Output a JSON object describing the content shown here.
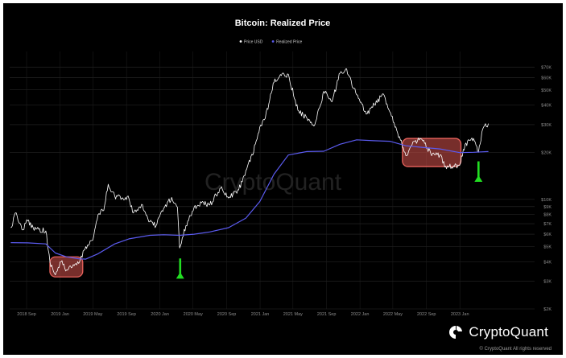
{
  "chart_data": {
    "type": "line",
    "title": "Bitcoin: Realized Price",
    "yscale": "log",
    "ylim": [
      2000,
      80000
    ],
    "grid": true,
    "legend_position": "top-center",
    "y_ticks": [
      {
        "value": 2000,
        "label": "$2K"
      },
      {
        "value": 3000,
        "label": "$3K"
      },
      {
        "value": 4000,
        "label": "$4K"
      },
      {
        "value": 5000,
        "label": "$5K"
      },
      {
        "value": 6000,
        "label": "$6K"
      },
      {
        "value": 7000,
        "label": "$7K"
      },
      {
        "value": 8000,
        "label": "$8K"
      },
      {
        "value": 9000,
        "label": "$9K"
      },
      {
        "value": 10000,
        "label": "$10K"
      },
      {
        "value": 20000,
        "label": "$20K"
      },
      {
        "value": 30000,
        "label": "$30K"
      },
      {
        "value": 40000,
        "label": "$40K"
      },
      {
        "value": 50000,
        "label": "$50K"
      },
      {
        "value": 60000,
        "label": "$60K"
      },
      {
        "value": 70000,
        "label": "$70K"
      }
    ],
    "x_range": [
      "2018-07",
      "2023-10"
    ],
    "x_ticks": [
      {
        "date": "2018-09",
        "label": "2018 Sep"
      },
      {
        "date": "2019-01",
        "label": "2019 Jan"
      },
      {
        "date": "2019-05",
        "label": "2019 May"
      },
      {
        "date": "2019-09",
        "label": "2019 Sep"
      },
      {
        "date": "2020-01",
        "label": "2020 Jan"
      },
      {
        "date": "2020-05",
        "label": "2020 May"
      },
      {
        "date": "2020-09",
        "label": "2020 Sep"
      },
      {
        "date": "2021-01",
        "label": "2021 Jan"
      },
      {
        "date": "2021-05",
        "label": "2021 May"
      },
      {
        "date": "2021-09",
        "label": "2021 Sep"
      },
      {
        "date": "2022-01",
        "label": "2022 Jan"
      },
      {
        "date": "2022-05",
        "label": "2022 May"
      },
      {
        "date": "2022-09",
        "label": "2022 Sep"
      },
      {
        "date": "2023-01",
        "label": "2023 Jan"
      }
    ],
    "series": [
      {
        "name": "Price USD",
        "color": "#ffffff",
        "points": [
          [
            "2018-07-05",
            6600
          ],
          [
            "2018-07-25",
            8200
          ],
          [
            "2018-08-15",
            6400
          ],
          [
            "2018-09-05",
            7300
          ],
          [
            "2018-09-25",
            6600
          ],
          [
            "2018-10-15",
            6450
          ],
          [
            "2018-11-10",
            6300
          ],
          [
            "2018-11-25",
            4000
          ],
          [
            "2018-12-15",
            3300
          ],
          [
            "2019-01-05",
            4000
          ],
          [
            "2019-01-25",
            3550
          ],
          [
            "2019-02-15",
            3700
          ],
          [
            "2019-03-10",
            3900
          ],
          [
            "2019-04-05",
            5000
          ],
          [
            "2019-05-01",
            5500
          ],
          [
            "2019-05-20",
            8000
          ],
          [
            "2019-06-10",
            8500
          ],
          [
            "2019-06-26",
            12500
          ],
          [
            "2019-07-20",
            10500
          ],
          [
            "2019-08-15",
            10200
          ],
          [
            "2019-09-10",
            10100
          ],
          [
            "2019-09-26",
            8200
          ],
          [
            "2019-10-26",
            9300
          ],
          [
            "2019-11-25",
            7200
          ],
          [
            "2019-12-18",
            6800
          ],
          [
            "2020-01-15",
            8800
          ],
          [
            "2020-02-13",
            10300
          ],
          [
            "2020-03-05",
            8900
          ],
          [
            "2020-03-13",
            4900
          ],
          [
            "2020-04-05",
            6800
          ],
          [
            "2020-05-05",
            8900
          ],
          [
            "2020-06-01",
            9500
          ],
          [
            "2020-07-01",
            9200
          ],
          [
            "2020-08-10",
            11800
          ],
          [
            "2020-09-08",
            10200
          ],
          [
            "2020-10-15",
            11500
          ],
          [
            "2020-11-10",
            15300
          ],
          [
            "2020-12-05",
            19200
          ],
          [
            "2020-12-31",
            29000
          ],
          [
            "2021-01-20",
            33000
          ],
          [
            "2021-02-21",
            56000
          ],
          [
            "2021-03-13",
            61000
          ],
          [
            "2021-04-14",
            63000
          ],
          [
            "2021-05-19",
            37000
          ],
          [
            "2021-06-21",
            33000
          ],
          [
            "2021-07-20",
            30000
          ],
          [
            "2021-08-22",
            49000
          ],
          [
            "2021-09-21",
            42000
          ],
          [
            "2021-10-20",
            64000
          ],
          [
            "2021-11-10",
            68000
          ],
          [
            "2021-12-20",
            46500
          ],
          [
            "2022-01-24",
            35000
          ],
          [
            "2022-03-28",
            47000
          ],
          [
            "2022-05-12",
            29000
          ],
          [
            "2022-06-18",
            19000
          ],
          [
            "2022-07-20",
            23500
          ],
          [
            "2022-08-15",
            24200
          ],
          [
            "2022-09-20",
            19000
          ],
          [
            "2022-10-20",
            19200
          ],
          [
            "2022-11-10",
            16300
          ],
          [
            "2022-12-31",
            16500
          ],
          [
            "2023-01-20",
            22500
          ],
          [
            "2023-02-20",
            24500
          ],
          [
            "2023-03-10",
            20000
          ],
          [
            "2023-03-25",
            28000
          ],
          [
            "2023-04-15",
            30500
          ]
        ]
      },
      {
        "name": "Realized Price",
        "color": "#5b5bf0",
        "points": [
          [
            "2018-07-05",
            5300
          ],
          [
            "2018-09-05",
            5280
          ],
          [
            "2018-11-10",
            5200
          ],
          [
            "2018-12-15",
            4550
          ],
          [
            "2019-01-25",
            4300
          ],
          [
            "2019-03-10",
            4180
          ],
          [
            "2019-04-05",
            4160
          ],
          [
            "2019-05-20",
            4500
          ],
          [
            "2019-07-20",
            5200
          ],
          [
            "2019-09-10",
            5600
          ],
          [
            "2019-11-25",
            5900
          ],
          [
            "2020-01-15",
            5950
          ],
          [
            "2020-03-13",
            5900
          ],
          [
            "2020-05-05",
            6000
          ],
          [
            "2020-07-01",
            6200
          ],
          [
            "2020-09-08",
            6600
          ],
          [
            "2020-11-10",
            7600
          ],
          [
            "2020-12-31",
            9700
          ],
          [
            "2021-02-21",
            14500
          ],
          [
            "2021-04-14",
            19200
          ],
          [
            "2021-06-21",
            20200
          ],
          [
            "2021-08-22",
            20300
          ],
          [
            "2021-10-20",
            22500
          ],
          [
            "2021-12-20",
            24000
          ],
          [
            "2022-02-20",
            23700
          ],
          [
            "2022-04-20",
            23500
          ],
          [
            "2022-06-18",
            22000
          ],
          [
            "2022-08-15",
            21500
          ],
          [
            "2022-10-20",
            21000
          ],
          [
            "2022-12-31",
            19900
          ],
          [
            "2023-02-20",
            20000
          ],
          [
            "2023-04-15",
            20200
          ]
        ]
      }
    ],
    "annotations": [
      {
        "type": "box",
        "from": [
          "2018-11-25",
          4300
        ],
        "to": [
          "2019-03-25",
          3200
        ],
        "color": "#d9534f"
      },
      {
        "type": "box",
        "from": [
          "2022-06-05",
          24500
        ],
        "to": [
          "2023-01-05",
          16200
        ],
        "color": "#d9534f"
      },
      {
        "type": "arrow",
        "date": "2020-03-15",
        "from_value": 4200,
        "to_value": 3350,
        "direction": "up",
        "color": "#22dd22"
      },
      {
        "type": "arrow",
        "date": "2023-03-10",
        "from_value": 17500,
        "to_value": 13900,
        "direction": "up",
        "color": "#22dd22"
      }
    ]
  },
  "watermark": "CryptoQuant",
  "brand": {
    "logo_text": "CryptoQuant",
    "copyright": "© CryptoQuant All rights reserved"
  }
}
